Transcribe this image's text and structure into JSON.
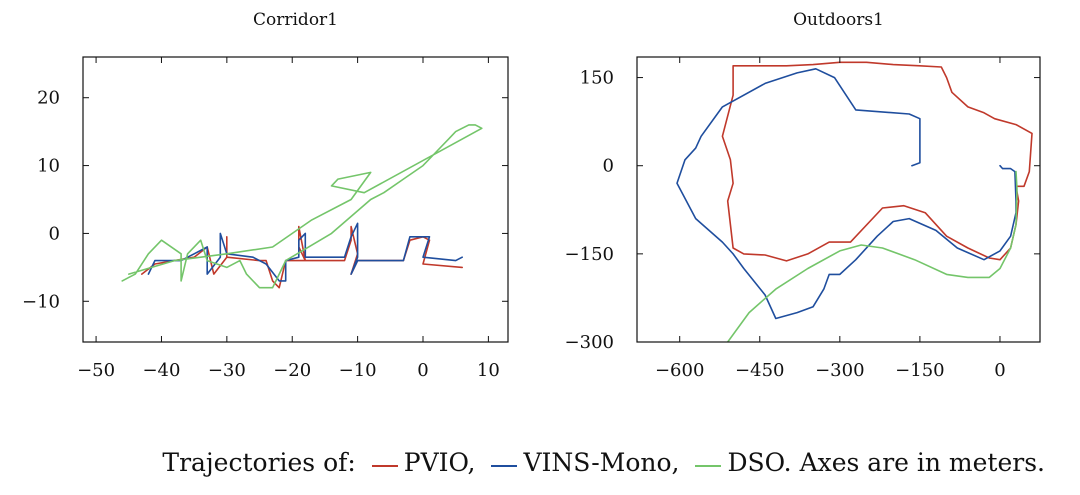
{
  "colors": {
    "pvio": "#c0392b",
    "vins": "#1f4e9e",
    "dso": "#74c56a",
    "axis": "#111111"
  },
  "chart_data": [
    {
      "type": "line",
      "title": "Corridor1",
      "xlabel": "",
      "ylabel": "",
      "xlim": [
        -52,
        13
      ],
      "ylim": [
        -16,
        26
      ],
      "xticks": [
        -50,
        -40,
        -30,
        -20,
        -10,
        0,
        10
      ],
      "yticks": [
        -10,
        0,
        10,
        20
      ],
      "xtick_labels": [
        "−50",
        "−40",
        "−30",
        "−20",
        "−10",
        "0",
        "10"
      ],
      "ytick_labels": [
        "−10",
        "0",
        "10",
        "20"
      ],
      "series": [
        {
          "name": "PVIO",
          "color_key": "pvio",
          "points": [
            [
              -43,
              -6
            ],
            [
              -41,
              -4.5
            ],
            [
              -38,
              -4
            ],
            [
              -35,
              -3.5
            ],
            [
              -33,
              -2
            ],
            [
              -32,
              -6
            ],
            [
              -30,
              -3.5
            ],
            [
              -30,
              -0.5
            ],
            [
              -30,
              -3.5
            ],
            [
              -25,
              -4
            ],
            [
              -24,
              -4
            ],
            [
              -23,
              -7
            ],
            [
              -22,
              -8
            ],
            [
              -21,
              -4
            ],
            [
              -18,
              -4
            ],
            [
              -19,
              -2
            ],
            [
              -19,
              1
            ],
            [
              -18,
              -4
            ],
            [
              -12,
              -4
            ],
            [
              -11,
              -1
            ],
            [
              -11,
              1
            ],
            [
              -10,
              -3
            ],
            [
              -11,
              -6
            ],
            [
              -10,
              -4
            ],
            [
              -3,
              -4
            ],
            [
              -2,
              -1
            ],
            [
              0,
              -0.5
            ],
            [
              1,
              -1
            ],
            [
              0,
              -4.5
            ],
            [
              6,
              -5
            ]
          ]
        },
        {
          "name": "VINS-Mono",
          "color_key": "vins",
          "points": [
            [
              -42,
              -6
            ],
            [
              -41,
              -4
            ],
            [
              -37,
              -4
            ],
            [
              -35,
              -3
            ],
            [
              -33,
              -2
            ],
            [
              -33,
              -6
            ],
            [
              -31,
              -3.5
            ],
            [
              -31,
              0
            ],
            [
              -30,
              -3
            ],
            [
              -26,
              -3.5
            ],
            [
              -24,
              -4.5
            ],
            [
              -22,
              -7
            ],
            [
              -21,
              -7
            ],
            [
              -21,
              -4
            ],
            [
              -19,
              -3.5
            ],
            [
              -19,
              -1
            ],
            [
              -18,
              0
            ],
            [
              -18,
              -3.5
            ],
            [
              -12,
              -3.5
            ],
            [
              -11,
              -0.5
            ],
            [
              -10,
              1.5
            ],
            [
              -10,
              -3.5
            ],
            [
              -11,
              -6
            ],
            [
              -10,
              -4
            ],
            [
              -3,
              -4
            ],
            [
              -2,
              -0.5
            ],
            [
              1,
              -0.5
            ],
            [
              0,
              -3.5
            ],
            [
              5,
              -4
            ],
            [
              6,
              -3.5
            ]
          ]
        },
        {
          "name": "DSO",
          "color_key": "dso",
          "points": [
            [
              -46,
              -7
            ],
            [
              -44,
              -6
            ],
            [
              -42,
              -3
            ],
            [
              -40,
              -1
            ],
            [
              -37,
              -3
            ],
            [
              -37,
              -7
            ],
            [
              -36,
              -3
            ],
            [
              -34,
              -1
            ],
            [
              -33,
              -4
            ],
            [
              -30,
              -5
            ],
            [
              -28,
              -4
            ],
            [
              -27,
              -6
            ],
            [
              -25,
              -8
            ],
            [
              -23,
              -8
            ],
            [
              -22,
              -6
            ],
            [
              -21,
              -4
            ],
            [
              -14,
              0
            ],
            [
              -8,
              5
            ],
            [
              -6,
              6
            ],
            [
              -3,
              8
            ],
            [
              0,
              10
            ],
            [
              2,
              12
            ],
            [
              4,
              14
            ],
            [
              5,
              15
            ],
            [
              7,
              16
            ],
            [
              8,
              16
            ],
            [
              9,
              15.5
            ],
            [
              -9,
              6
            ],
            [
              -14,
              7
            ],
            [
              -13,
              8
            ],
            [
              -8,
              9
            ],
            [
              -11,
              5
            ],
            [
              -17,
              2
            ],
            [
              -23,
              -2
            ],
            [
              -30,
              -3
            ],
            [
              -38,
              -4
            ],
            [
              -45,
              -6
            ]
          ]
        }
      ]
    },
    {
      "type": "line",
      "title": "Outdoors1",
      "xlabel": "",
      "ylabel": "",
      "xlim": [
        -680,
        75
      ],
      "ylim": [
        -300,
        185
      ],
      "xticks": [
        -600,
        -450,
        -300,
        -150,
        0
      ],
      "yticks": [
        -300,
        -150,
        0,
        150
      ],
      "xtick_labels": [
        "−600",
        "−450",
        "−300",
        "−150",
        "0"
      ],
      "ytick_labels": [
        "−300",
        "−150",
        "0",
        "150"
      ],
      "series": [
        {
          "name": "PVIO",
          "color_key": "pvio",
          "points": [
            [
              -20,
              -157
            ],
            [
              -60,
              -140
            ],
            [
              -100,
              -120
            ],
            [
              -140,
              -80
            ],
            [
              -180,
              -68
            ],
            [
              -220,
              -72
            ],
            [
              -280,
              -130
            ],
            [
              -320,
              -130
            ],
            [
              -360,
              -150
            ],
            [
              -400,
              -162
            ],
            [
              -440,
              -152
            ],
            [
              -480,
              -150
            ],
            [
              -500,
              -140
            ],
            [
              -505,
              -100
            ],
            [
              -510,
              -60
            ],
            [
              -500,
              -30
            ],
            [
              -505,
              10
            ],
            [
              -520,
              50
            ],
            [
              -500,
              120
            ],
            [
              -500,
              170
            ],
            [
              -450,
              170
            ],
            [
              -400,
              170
            ],
            [
              -350,
              172
            ],
            [
              -300,
              176
            ],
            [
              -250,
              176
            ],
            [
              -200,
              172
            ],
            [
              -150,
              170
            ],
            [
              -110,
              168
            ],
            [
              -100,
              150
            ],
            [
              -90,
              125
            ],
            [
              -60,
              100
            ],
            [
              -30,
              90
            ],
            [
              -10,
              80
            ],
            [
              30,
              70
            ],
            [
              60,
              55
            ],
            [
              55,
              -10
            ],
            [
              45,
              -35
            ],
            [
              30,
              -35
            ],
            [
              35,
              -60
            ],
            [
              30,
              -100
            ],
            [
              20,
              -140
            ],
            [
              0,
              -160
            ],
            [
              -20,
              -157
            ]
          ]
        },
        {
          "name": "VINS-Mono",
          "color_key": "vins",
          "points": [
            [
              -165,
              0
            ],
            [
              -150,
              5
            ],
            [
              -150,
              80
            ],
            [
              -170,
              88
            ],
            [
              -270,
              95
            ],
            [
              -310,
              150
            ],
            [
              -345,
              165
            ],
            [
              -380,
              158
            ],
            [
              -440,
              140
            ],
            [
              -520,
              100
            ],
            [
              -560,
              50
            ],
            [
              -570,
              30
            ],
            [
              -590,
              10
            ],
            [
              -605,
              -30
            ],
            [
              -570,
              -90
            ],
            [
              -520,
              -130
            ],
            [
              -500,
              -150
            ],
            [
              -480,
              -175
            ],
            [
              -440,
              -220
            ],
            [
              -420,
              -260
            ],
            [
              -380,
              -250
            ],
            [
              -350,
              -240
            ],
            [
              -330,
              -210
            ],
            [
              -320,
              -185
            ],
            [
              -300,
              -185
            ],
            [
              -270,
              -160
            ],
            [
              -230,
              -120
            ],
            [
              -200,
              -95
            ],
            [
              -170,
              -90
            ],
            [
              -120,
              -110
            ],
            [
              -80,
              -140
            ],
            [
              -30,
              -160
            ],
            [
              0,
              -145
            ],
            [
              20,
              -120
            ],
            [
              30,
              -80
            ],
            [
              30,
              -60
            ],
            [
              28,
              -10
            ],
            [
              20,
              -5
            ],
            [
              5,
              -5
            ],
            [
              0,
              0
            ]
          ]
        },
        {
          "name": "DSO",
          "color_key": "dso",
          "points": [
            [
              -510,
              -300
            ],
            [
              -470,
              -250
            ],
            [
              -420,
              -210
            ],
            [
              -360,
              -175
            ],
            [
              -300,
              -145
            ],
            [
              -260,
              -135
            ],
            [
              -220,
              -140
            ],
            [
              -160,
              -160
            ],
            [
              -100,
              -185
            ],
            [
              -60,
              -190
            ],
            [
              -20,
              -190
            ],
            [
              0,
              -175
            ],
            [
              20,
              -140
            ],
            [
              30,
              -100
            ],
            [
              32,
              -40
            ],
            [
              30,
              -10
            ]
          ]
        }
      ]
    }
  ],
  "caption": {
    "prefix": "Trajectories of:",
    "items": [
      {
        "label": "PVIO,",
        "color_key": "pvio"
      },
      {
        "label": "VINS-Mono,",
        "color_key": "vins"
      },
      {
        "label": "DSO.",
        "color_key": "dso"
      }
    ],
    "suffix": "Axes are in meters."
  }
}
